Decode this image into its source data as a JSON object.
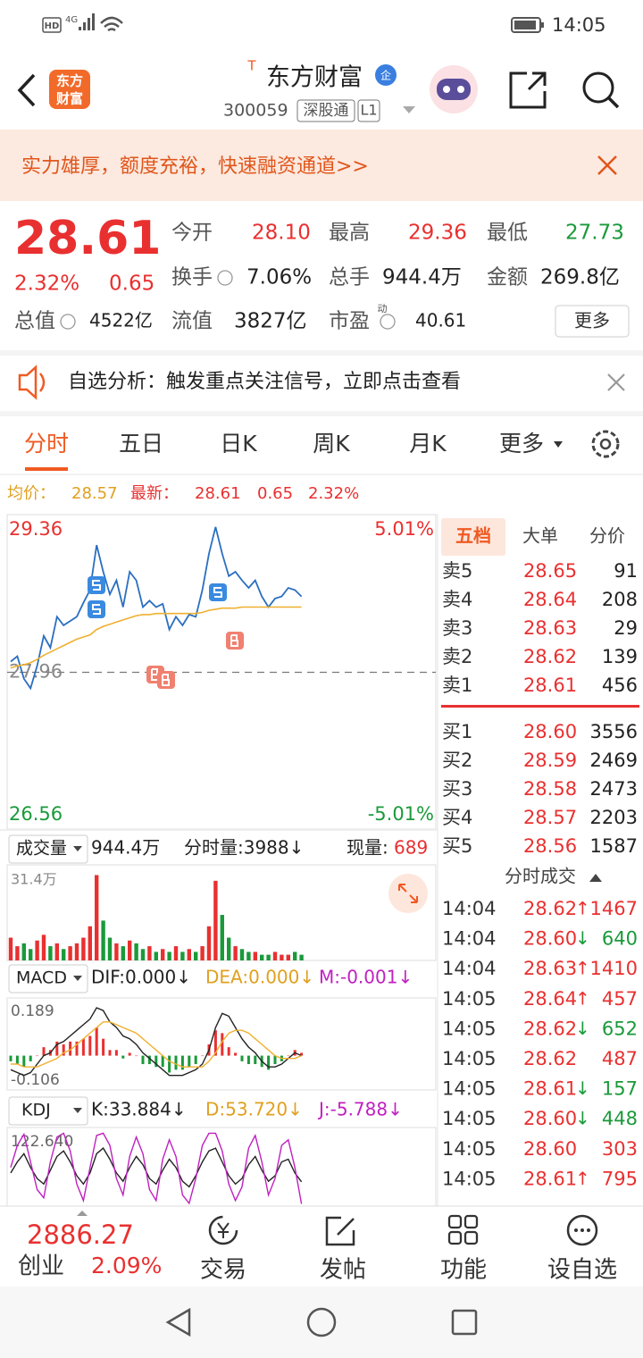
{
  "status_bar": {
    "hd": "HD",
    "network": "4G",
    "time": "14:05"
  },
  "header": {
    "logo_lines": [
      "东方",
      "财富"
    ],
    "title_prefix": "T",
    "title": "东方财富",
    "badge": "企",
    "code": "300059",
    "tags": [
      "深股通",
      "L1"
    ]
  },
  "banner": {
    "text": "实力雄厚，额度充裕，快速融资通道>>"
  },
  "quote": {
    "price": "28.61",
    "change_pct": "2.32%",
    "change": "0.65",
    "fields": [
      {
        "label": "今开",
        "value": "28.10",
        "color": "#e93030"
      },
      {
        "label": "最高",
        "value": "29.36",
        "color": "#e93030"
      },
      {
        "label": "最低",
        "value": "27.73",
        "color": "#1a9a3a"
      },
      {
        "label": "换手",
        "value": "7.06%",
        "color": "#222222"
      },
      {
        "label": "总手",
        "value": "944.4万",
        "color": "#222222"
      },
      {
        "label": "金额",
        "value": "269.8亿",
        "color": "#222222"
      },
      {
        "label": "总值",
        "value": "4522亿",
        "color": "#222222"
      },
      {
        "label": "流值",
        "value": "3827亿",
        "color": "#222222"
      },
      {
        "label": "市盈",
        "superscript": "动",
        "value": "40.61",
        "color": "#222222"
      }
    ],
    "more_button": "更多"
  },
  "notice": {
    "text": "自选分析：触发重点关注信号，立即点击查看"
  },
  "tabs": {
    "items": [
      "分时",
      "五日",
      "日K",
      "周K",
      "月K",
      "更多"
    ],
    "active": 0
  },
  "summary": {
    "avg_label": "均价：",
    "avg": "28.57",
    "last_label": "最新：",
    "last": "28.61",
    "change": "0.65",
    "pct": "2.32%"
  },
  "indicator_headers": {
    "volume": {
      "name": "成交量",
      "total": "944.4万",
      "minute": "分时量:3988↓",
      "now_label": "现量:",
      "now": "689"
    },
    "macd": {
      "name": "MACD",
      "dif": "DIF:0.000↓",
      "dea": "DEA:0.000↓",
      "m": "M:-0.001↓"
    },
    "kdj": {
      "name": "KDJ",
      "k": "K:33.884↓",
      "d": "D:53.720↓",
      "j": "J:-5.788↓"
    }
  },
  "chart_data": [
    {
      "type": "line",
      "ylim": [
        26.56,
        29.36
      ],
      "yticks": [
        29.36,
        27.96,
        26.56
      ],
      "y2lim": [
        -5.01,
        5.01
      ],
      "y2ticks": [
        {
          "value": 5.01,
          "label": "5.01%"
        },
        {
          "value": -5.01,
          "label": "-5.01%"
        }
      ],
      "series": [
        {
          "color": "#2a6fc0",
          "values": [
            28.06,
            28.11,
            27.9,
            27.81,
            28.02,
            28.3,
            28.19,
            28.48,
            28.4,
            28.44,
            28.48,
            28.61,
            28.73,
            29.15,
            28.9,
            28.69,
            28.82,
            28.57,
            28.9,
            28.82,
            28.57,
            28.63,
            28.57,
            28.6,
            28.36,
            28.48,
            28.4,
            28.5,
            28.48,
            28.73,
            29.07,
            29.32,
            29.07,
            28.86,
            28.9,
            28.82,
            28.75,
            28.82,
            28.67,
            28.57,
            28.65,
            28.67,
            28.75,
            28.73,
            28.67
          ]
        },
        {
          "color": "#f0b030",
          "values": [
            28.0,
            28.02,
            28.03,
            28.05,
            28.08,
            28.12,
            28.15,
            28.18,
            28.21,
            28.24,
            28.27,
            28.29,
            28.31,
            28.36,
            28.39,
            28.41,
            28.43,
            28.45,
            28.47,
            28.49,
            28.5,
            28.5,
            28.51,
            28.51,
            28.51,
            28.51,
            28.51,
            28.51,
            28.51,
            28.52,
            28.54,
            28.55,
            28.56,
            28.56,
            28.56,
            28.57,
            28.57,
            28.57,
            28.57,
            28.57,
            28.57,
            28.57,
            28.57,
            28.57,
            28.57
          ]
        }
      ]
    },
    {
      "type": "bar",
      "ylim": [
        0,
        31.4
      ],
      "yticks": [
        {
          "value": 31.4,
          "label": "31.4万"
        }
      ],
      "color": "#e93030",
      "down_color": "#1a9a3a",
      "values": [
        8,
        5,
        6,
        4,
        7,
        9,
        5,
        6,
        4,
        5,
        6,
        8,
        12,
        30,
        14,
        8,
        6,
        5,
        7,
        6,
        4,
        5,
        3,
        4,
        3,
        5,
        3,
        4,
        3,
        5,
        12,
        28,
        16,
        8,
        5,
        4,
        3,
        3,
        2,
        2,
        3,
        2,
        2,
        3,
        2
      ]
    },
    {
      "type": "combo",
      "ylim": [
        -0.106,
        0.189
      ],
      "yticks": [
        0.189,
        -0.106
      ],
      "series": [
        {
          "type": "bar",
          "color": "#e93030",
          "negative_color": "#1a9a3a",
          "values": [
            -0.02,
            -0.03,
            -0.04,
            -0.02,
            0.0,
            0.03,
            0.02,
            0.05,
            0.04,
            0.05,
            0.05,
            0.06,
            0.07,
            0.1,
            0.06,
            0.02,
            0.02,
            -0.01,
            0.01,
            0.0,
            -0.03,
            -0.03,
            -0.04,
            -0.04,
            -0.06,
            -0.05,
            -0.05,
            -0.04,
            -0.03,
            0.0,
            0.04,
            0.09,
            0.08,
            0.03,
            0.01,
            -0.02,
            -0.03,
            -0.03,
            -0.04,
            -0.05,
            -0.03,
            -0.02,
            0.0,
            0.02,
            0.01
          ]
        },
        {
          "type": "line",
          "color": "#222222",
          "values": [
            -0.05,
            -0.06,
            -0.07,
            -0.06,
            -0.03,
            0.0,
            0.01,
            0.04,
            0.05,
            0.07,
            0.09,
            0.11,
            0.13,
            0.17,
            0.16,
            0.12,
            0.1,
            0.07,
            0.06,
            0.04,
            0.01,
            -0.01,
            -0.03,
            -0.05,
            -0.07,
            -0.07,
            -0.07,
            -0.06,
            -0.05,
            -0.03,
            0.02,
            0.1,
            0.15,
            0.14,
            0.1,
            0.06,
            0.03,
            0.01,
            -0.02,
            -0.04,
            -0.04,
            -0.03,
            -0.01,
            0.01,
            0.0
          ]
        },
        {
          "type": "line",
          "color": "#f0b030",
          "values": [
            -0.03,
            -0.03,
            -0.04,
            -0.04,
            -0.04,
            -0.03,
            -0.02,
            -0.01,
            0.01,
            0.02,
            0.04,
            0.06,
            0.08,
            0.1,
            0.12,
            0.12,
            0.11,
            0.1,
            0.09,
            0.08,
            0.06,
            0.04,
            0.02,
            0.0,
            -0.02,
            -0.03,
            -0.04,
            -0.04,
            -0.04,
            -0.04,
            -0.02,
            0.01,
            0.05,
            0.08,
            0.09,
            0.09,
            0.08,
            0.06,
            0.04,
            0.02,
            0.0,
            -0.01,
            -0.01,
            -0.01,
            0.0
          ]
        }
      ]
    },
    {
      "type": "line",
      "ylim": [
        -10,
        122.64
      ],
      "yticks": [
        {
          "value": 122.64,
          "label": "122.640"
        }
      ],
      "series": [
        {
          "color": "#222222",
          "values": [
            50,
            70,
            85,
            60,
            40,
            30,
            55,
            80,
            90,
            70,
            45,
            30,
            50,
            85,
            95,
            75,
            50,
            35,
            60,
            80,
            65,
            40,
            30,
            55,
            75,
            60,
            35,
            25,
            45,
            70,
            90,
            95,
            70,
            45,
            30,
            40,
            65,
            80,
            55,
            35,
            45,
            70,
            75,
            50,
            34
          ]
        },
        {
          "color": "#c020c0",
          "values": [
            60,
            100,
            120,
            70,
            20,
            5,
            70,
            115,
            122,
            90,
            30,
            0,
            60,
            118,
            122,
            100,
            40,
            10,
            80,
            115,
            85,
            20,
            0,
            75,
            110,
            80,
            10,
            -5,
            40,
            100,
            122,
            122,
            90,
            30,
            0,
            25,
            95,
            118,
            70,
            10,
            40,
            100,
            110,
            60,
            -6
          ]
        }
      ]
    }
  ],
  "order_book": {
    "tabs": [
      "五档",
      "大单",
      "分价"
    ],
    "active": 0,
    "sells": [
      {
        "label": "卖5",
        "price": "28.65",
        "volume": "91"
      },
      {
        "label": "卖4",
        "price": "28.64",
        "volume": "208"
      },
      {
        "label": "卖3",
        "price": "28.63",
        "volume": "29"
      },
      {
        "label": "卖2",
        "price": "28.62",
        "volume": "139"
      },
      {
        "label": "卖1",
        "price": "28.61",
        "volume": "456"
      }
    ],
    "buys": [
      {
        "label": "买1",
        "price": "28.60",
        "volume": "3556"
      },
      {
        "label": "买2",
        "price": "28.59",
        "volume": "2469"
      },
      {
        "label": "买3",
        "price": "28.58",
        "volume": "2473"
      },
      {
        "label": "买4",
        "price": "28.57",
        "volume": "2203"
      },
      {
        "label": "买5",
        "price": "28.56",
        "volume": "1587"
      }
    ]
  },
  "trades": {
    "title": "分时成交",
    "rows": [
      {
        "time": "14:04",
        "price": "28.62",
        "arrow": "↑",
        "volume": "1467",
        "color": "#e93030"
      },
      {
        "time": "14:04",
        "price": "28.60",
        "arrow": "↓",
        "volume": "640",
        "color": "#1a9a3a"
      },
      {
        "time": "14:04",
        "price": "28.63",
        "arrow": "↑",
        "volume": "1410",
        "color": "#e93030"
      },
      {
        "time": "14:05",
        "price": "28.64",
        "arrow": "↑",
        "volume": "457",
        "color": "#e93030"
      },
      {
        "time": "14:05",
        "price": "28.62",
        "arrow": "↓",
        "volume": "652",
        "color": "#1a9a3a"
      },
      {
        "time": "14:05",
        "price": "28.62",
        "volume": "487",
        "color": "#e93030"
      },
      {
        "time": "14:05",
        "price": "28.61",
        "arrow": "↓",
        "volume": "157",
        "color": "#1a9a3a"
      },
      {
        "time": "14:05",
        "price": "28.60",
        "arrow": "↓",
        "volume": "448",
        "color": "#1a9a3a"
      },
      {
        "time": "14:05",
        "price": "28.60",
        "volume": "303",
        "color": "#e93030"
      },
      {
        "time": "14:05",
        "price": "28.61",
        "arrow": "↑",
        "volume": "795",
        "color": "#e93030"
      }
    ]
  },
  "bottom_nav": {
    "index_value": "2886.27",
    "index_name": "创业",
    "index_pct": "2.09%",
    "items": [
      "交易",
      "发帖",
      "功能",
      "设自选"
    ]
  }
}
